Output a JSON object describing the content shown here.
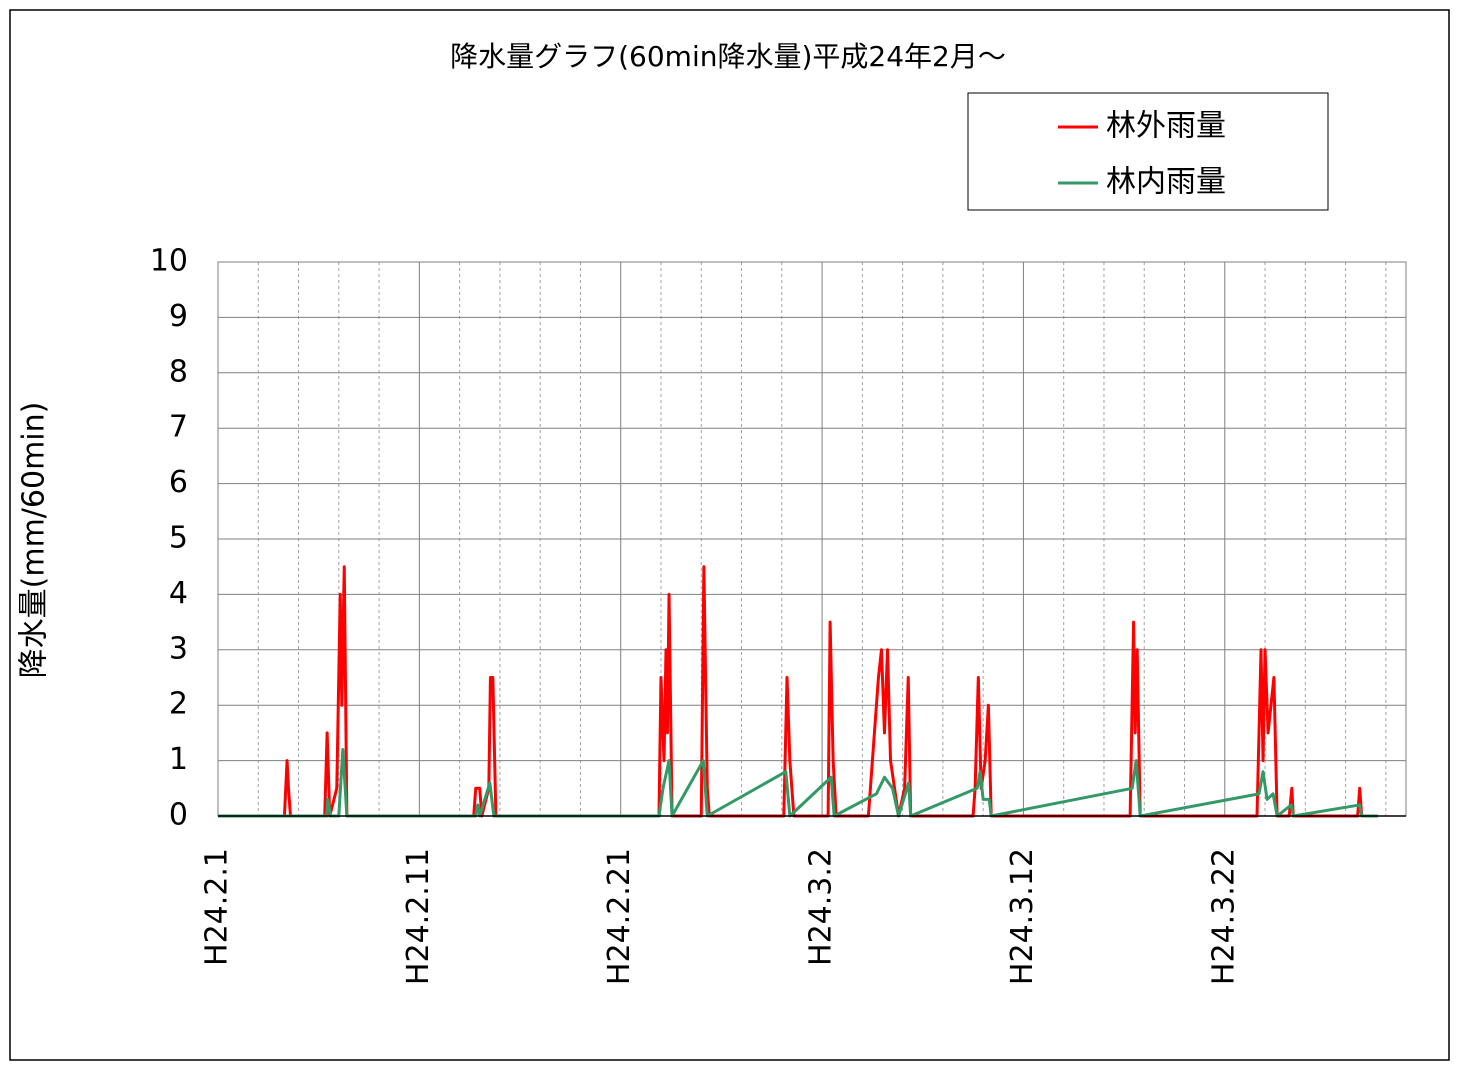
{
  "chart_data": {
    "type": "line",
    "title": "降水量グラフ(60min降水量)平成24年2月～",
    "y_label": "降水量(mm/60min)",
    "xlim": [
      0,
      59
    ],
    "xticks": [
      {
        "value": 0,
        "label": "H24.2.1"
      },
      {
        "value": 10,
        "label": "H24.2.11"
      },
      {
        "value": 20,
        "label": "H24.2.21"
      },
      {
        "value": 30,
        "label": "H24.3.2"
      },
      {
        "value": 40,
        "label": "H24.3.12"
      },
      {
        "value": 50,
        "label": "H24.3.22"
      }
    ],
    "x_minor_ticks": [
      2,
      4,
      6,
      8,
      12,
      14,
      16,
      18,
      22,
      24,
      26,
      28,
      32,
      34,
      36,
      38,
      42,
      44,
      46,
      48,
      52,
      54,
      56,
      58
    ],
    "ylim": [
      0,
      10
    ],
    "yticks": [
      0,
      1,
      2,
      3,
      4,
      5,
      6,
      7,
      8,
      9,
      10
    ],
    "grid": true,
    "legend": "top-right",
    "series": [
      {
        "name": "林外雨量",
        "color": "#ff0000",
        "x": [
          0,
          3.3,
          3.43,
          3.5,
          3.6,
          5.3,
          5.42,
          5.55,
          5.9,
          6.07,
          6.15,
          6.27,
          6.4,
          12.7,
          12.8,
          13.0,
          13.1,
          13.45,
          13.53,
          13.65,
          13.8,
          21.9,
          22.0,
          22.15,
          22.25,
          22.32,
          22.4,
          22.55,
          24.0,
          24.13,
          24.3,
          24.4,
          28.1,
          28.26,
          28.4,
          28.6,
          30.3,
          30.4,
          30.55,
          30.7,
          32.3,
          32.6,
          32.8,
          32.95,
          33.1,
          33.25,
          33.4,
          33.6,
          33.8,
          34.1,
          34.28,
          34.4,
          37.5,
          37.6,
          37.76,
          37.9,
          38.1,
          38.26,
          38.4,
          45.3,
          45.47,
          45.55,
          45.65,
          45.8,
          51.6,
          51.8,
          51.9,
          52.0,
          52.15,
          52.44,
          52.6,
          53.2,
          53.33,
          53.4,
          56.6,
          56.7,
          56.8,
          57.6
        ],
        "values": [
          0,
          0,
          1.0,
          0.5,
          0,
          0,
          1.5,
          0,
          0.5,
          4.0,
          2.0,
          4.5,
          0,
          0,
          0.5,
          0.5,
          0,
          0.5,
          2.5,
          2.5,
          0,
          0,
          2.5,
          1.0,
          3.0,
          1.5,
          4.0,
          0,
          0,
          4.5,
          0.5,
          0,
          0,
          2.5,
          1.0,
          0,
          0,
          3.5,
          1.0,
          0,
          0,
          1.5,
          2.5,
          3.0,
          1.5,
          3.0,
          1.0,
          0.5,
          0,
          0.5,
          2.5,
          0,
          0,
          0.5,
          2.5,
          0.5,
          1.0,
          2.0,
          0,
          0,
          3.5,
          1.5,
          3.0,
          0,
          0,
          3.0,
          1.0,
          3.0,
          1.5,
          2.5,
          0,
          0,
          0.5,
          0,
          0,
          0.5,
          0,
          0
        ]
      },
      {
        "name": "林内雨量",
        "color": "#339966",
        "x": [
          0,
          5.4,
          5.45,
          5.6,
          6.0,
          6.2,
          6.4,
          12.8,
          12.9,
          13.0,
          13.5,
          13.7,
          21.9,
          22.1,
          22.4,
          22.55,
          24.1,
          24.3,
          28.2,
          28.4,
          30.45,
          30.6,
          32.7,
          33.1,
          33.5,
          33.8,
          34.3,
          34.4,
          37.7,
          37.85,
          38.0,
          38.3,
          38.4,
          45.4,
          45.6,
          45.8,
          51.7,
          51.9,
          52.1,
          52.4,
          52.6,
          53.3,
          53.4,
          56.7,
          56.8,
          57.6
        ],
        "values": [
          0,
          0,
          0.3,
          0,
          0,
          1.2,
          0,
          0,
          0.2,
          0,
          0.6,
          0,
          0,
          0.5,
          1.0,
          0,
          1.0,
          0,
          0.8,
          0,
          0.7,
          0,
          0.4,
          0.7,
          0.5,
          0,
          0.6,
          0,
          0.5,
          0.8,
          0.3,
          0.3,
          0,
          0.5,
          1.0,
          0,
          0.4,
          0.8,
          0.3,
          0.4,
          0,
          0.2,
          0,
          0.2,
          0,
          0
        ]
      }
    ]
  }
}
